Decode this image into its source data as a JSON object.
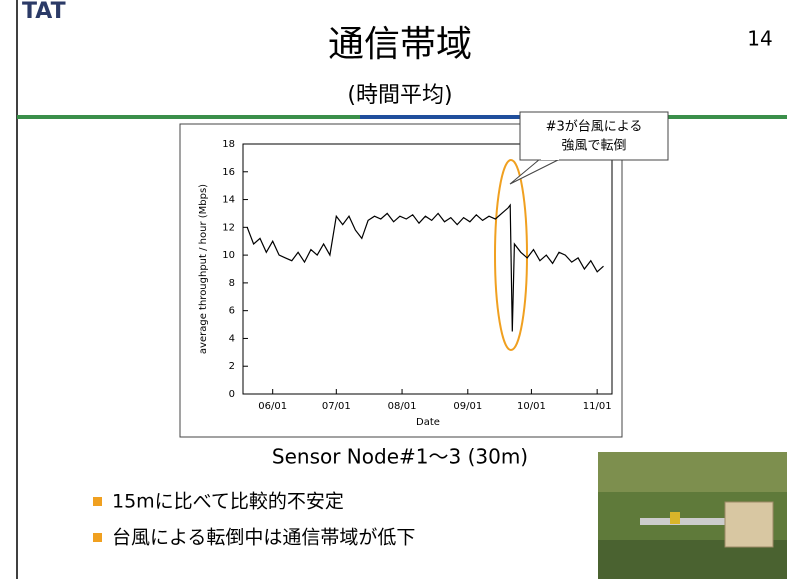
{
  "slide": {
    "logo": "TAT",
    "title": "通信帯域",
    "subtitle": "(時間平均)",
    "page_number": "14",
    "callout": [
      "#3が台風による",
      "強風で転倒"
    ],
    "caption": "Sensor Node#1～3 (30m)",
    "bullets": [
      "15mに比べて比較的不安定",
      "台風による転倒中は通信帯域が低下"
    ]
  },
  "chart_data": {
    "type": "line",
    "xlabel": "Date",
    "ylabel": "average throughput / hour (Mbps)",
    "x": [
      "05/20",
      "05/23",
      "05/26",
      "05/29",
      "06/01",
      "06/04",
      "06/07",
      "06/10",
      "06/13",
      "06/16",
      "06/19",
      "06/22",
      "06/25",
      "06/28",
      "07/01",
      "07/04",
      "07/07",
      "07/10",
      "07/13",
      "07/16",
      "07/19",
      "07/22",
      "07/25",
      "07/28",
      "07/31",
      "08/03",
      "08/06",
      "08/09",
      "08/12",
      "08/15",
      "08/18",
      "08/21",
      "08/24",
      "08/27",
      "08/30",
      "09/02",
      "09/05",
      "09/08",
      "09/11",
      "09/14",
      "09/17",
      "09/20",
      "09/21",
      "09/22",
      "09/23",
      "09/26",
      "09/29",
      "10/02",
      "10/05",
      "10/08",
      "10/11",
      "10/14",
      "10/17",
      "10/20",
      "10/23",
      "10/26",
      "10/29",
      "11/01",
      "11/04"
    ],
    "series": [
      {
        "color": "#000000",
        "values": [
          12.0,
          10.8,
          11.2,
          10.2,
          11.0,
          10.0,
          9.8,
          9.6,
          10.2,
          9.5,
          10.4,
          10.0,
          10.8,
          10.0,
          12.8,
          12.2,
          12.8,
          11.8,
          11.2,
          12.5,
          12.8,
          12.6,
          13.0,
          12.4,
          12.8,
          12.6,
          12.9,
          12.3,
          12.8,
          12.5,
          13.0,
          12.4,
          12.7,
          12.2,
          12.7,
          12.4,
          12.9,
          12.5,
          12.8,
          12.6,
          13.0,
          13.4,
          13.6,
          4.5,
          10.8,
          10.2,
          9.8,
          10.4,
          9.6,
          10.0,
          9.4,
          10.2,
          10.0,
          9.5,
          9.8,
          9.0,
          9.6,
          8.8,
          9.2
        ]
      }
    ],
    "xlim": [
      "05/18",
      "11/08"
    ],
    "xticks": [
      "06/01",
      "07/01",
      "08/01",
      "09/01",
      "10/01",
      "11/01"
    ],
    "ylim": [
      0,
      18
    ],
    "yticks": [
      0,
      2,
      4,
      6,
      8,
      10,
      12,
      14,
      16,
      18
    ],
    "grid": false
  }
}
